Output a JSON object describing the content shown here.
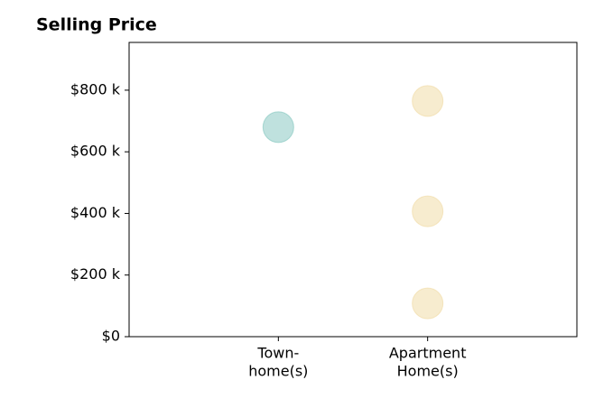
{
  "chart_data": {
    "type": "scatter",
    "title": "Selling Price",
    "categories": [
      [
        "Town-",
        "home(s)"
      ],
      [
        "Apartment",
        "Home(s)"
      ]
    ],
    "series": [
      {
        "color": "#7fc4bd",
        "x": [
          0
        ],
        "values": [
          680000
        ]
      },
      {
        "color": "#f0d9a0",
        "x": [
          1,
          1,
          1
        ],
        "values": [
          765000,
          407000,
          108000
        ]
      }
    ],
    "ylim": [
      0,
      955000
    ],
    "yticks": [
      {
        "value": 0,
        "label": "$0"
      },
      {
        "value": 200000,
        "label": "$200 k"
      },
      {
        "value": 400000,
        "label": "$400 k"
      },
      {
        "value": 600000,
        "label": "$600 k"
      },
      {
        "value": 800000,
        "label": "$800 k"
      }
    ]
  }
}
